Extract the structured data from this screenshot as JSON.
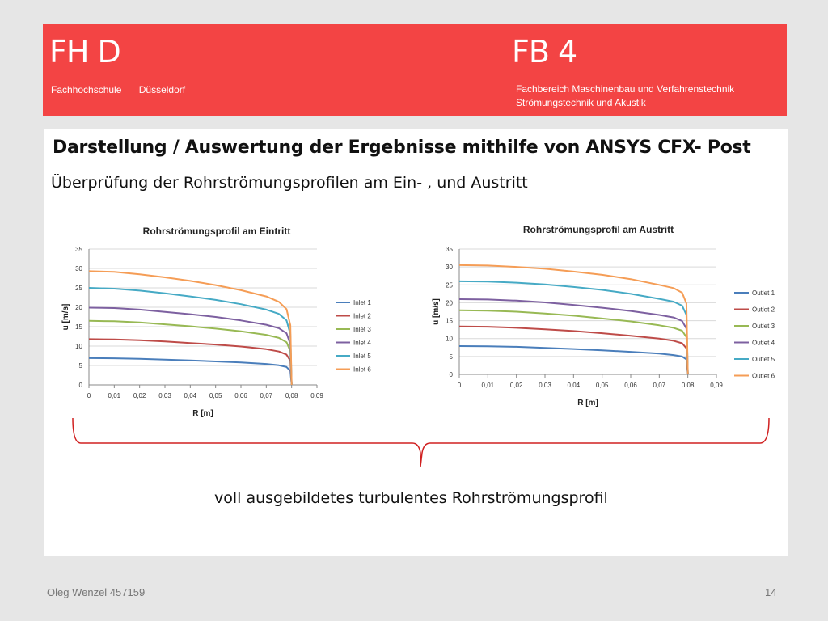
{
  "header": {
    "logo_left": "FH D",
    "logo_right": "FB 4",
    "sub_left_1": "Fachhochschule",
    "sub_left_2": "Düsseldorf",
    "sub_right_1": "Fachbereich Maschinenbau und Verfahrenstechnik",
    "sub_right_2": "Strömungstechnik und Akustik",
    "background_color": "#f34444"
  },
  "slide": {
    "heading": "Darstellung / Auswertung der Ergebnisse mithilfe von ANSYS CFX- Post",
    "subheading": "Überprüfung der Rohrströmungsprofilen am Ein- , und Austritt",
    "conclusion": "voll ausgebildetes turbulentes Rohrströmungsprofil"
  },
  "footer": {
    "author": "Oleg Wenzel 457159",
    "page": "14"
  },
  "chart_data": [
    {
      "type": "line",
      "title": "Rohrströmungsprofil  am Eintritt",
      "xlabel": "R [m]",
      "ylabel": "u [m/s]",
      "xlim": [
        0,
        0.09
      ],
      "ylim": [
        0,
        35
      ],
      "x_ticks": [
        "0",
        "0,01",
        "0,02",
        "0,03",
        "0,04",
        "0,05",
        "0,06",
        "0,07",
        "0,08",
        "0,09"
      ],
      "y_ticks": [
        "0",
        "5",
        "10",
        "15",
        "20",
        "25",
        "30",
        "35"
      ],
      "grid": true,
      "legend": "right",
      "x": [
        0,
        0.01,
        0.02,
        0.03,
        0.04,
        0.05,
        0.06,
        0.07,
        0.075,
        0.078,
        0.0795,
        0.08
      ],
      "series": [
        {
          "name": "Inlet 1",
          "color": "#4a7ebb",
          "values": [
            6.9,
            6.85,
            6.7,
            6.5,
            6.3,
            6.05,
            5.8,
            5.4,
            5.05,
            4.6,
            3.6,
            0
          ]
        },
        {
          "name": "Inlet 2",
          "color": "#be4b48",
          "values": [
            11.8,
            11.7,
            11.5,
            11.2,
            10.8,
            10.4,
            9.9,
            9.2,
            8.6,
            7.8,
            6.2,
            0
          ]
        },
        {
          "name": "Inlet 3",
          "color": "#98b954",
          "values": [
            16.5,
            16.4,
            16.1,
            15.6,
            15.1,
            14.5,
            13.8,
            12.9,
            12.1,
            11.0,
            8.7,
            0
          ]
        },
        {
          "name": "Inlet 4",
          "color": "#7d60a0",
          "values": [
            19.9,
            19.8,
            19.4,
            18.8,
            18.2,
            17.5,
            16.6,
            15.5,
            14.6,
            13.3,
            10.5,
            0
          ]
        },
        {
          "name": "Inlet 5",
          "color": "#46aac5",
          "values": [
            25.0,
            24.8,
            24.3,
            23.6,
            22.8,
            21.9,
            20.8,
            19.4,
            18.3,
            16.6,
            13.1,
            0
          ]
        },
        {
          "name": "Inlet 6",
          "color": "#f59d56",
          "values": [
            29.3,
            29.1,
            28.5,
            27.7,
            26.8,
            25.7,
            24.4,
            22.8,
            21.4,
            19.5,
            15.4,
            0
          ]
        }
      ]
    },
    {
      "type": "line",
      "title": "Rohrströmungsprofil am Austritt",
      "xlabel": "R [m]",
      "ylabel": "u [m/s]",
      "xlim": [
        0,
        0.09
      ],
      "ylim": [
        0,
        35
      ],
      "x_ticks": [
        "0",
        "0,01",
        "0,02",
        "0,03",
        "0,04",
        "0,05",
        "0,06",
        "0,07",
        "0,08",
        "0,09"
      ],
      "y_ticks": [
        "0",
        "5",
        "10",
        "15",
        "20",
        "25",
        "30",
        "35"
      ],
      "grid": true,
      "legend": "right",
      "x": [
        0,
        0.01,
        0.02,
        0.03,
        0.04,
        0.05,
        0.06,
        0.07,
        0.075,
        0.078,
        0.0795,
        0.08
      ],
      "series": [
        {
          "name": "Outlet 1",
          "color": "#4a7ebb",
          "values": [
            7.9,
            7.85,
            7.7,
            7.4,
            7.1,
            6.7,
            6.3,
            5.8,
            5.4,
            5.0,
            4.2,
            0
          ]
        },
        {
          "name": "Outlet 2",
          "color": "#be4b48",
          "values": [
            13.4,
            13.3,
            13.0,
            12.6,
            12.1,
            11.5,
            10.8,
            10.0,
            9.4,
            8.7,
            7.3,
            0
          ]
        },
        {
          "name": "Outlet 3",
          "color": "#98b954",
          "values": [
            17.9,
            17.8,
            17.5,
            17.0,
            16.4,
            15.6,
            14.8,
            13.7,
            13.0,
            12.2,
            10.4,
            0
          ]
        },
        {
          "name": "Outlet 4",
          "color": "#7d60a0",
          "values": [
            21.0,
            20.9,
            20.6,
            20.1,
            19.4,
            18.6,
            17.7,
            16.6,
            15.9,
            14.9,
            12.8,
            0
          ]
        },
        {
          "name": "Outlet 5",
          "color": "#46aac5",
          "values": [
            26.0,
            25.9,
            25.6,
            25.1,
            24.4,
            23.6,
            22.5,
            21.1,
            20.3,
            19.2,
            16.6,
            0
          ]
        },
        {
          "name": "Outlet 6",
          "color": "#f59d56",
          "values": [
            30.5,
            30.4,
            30.0,
            29.5,
            28.7,
            27.8,
            26.6,
            25.0,
            24.1,
            22.8,
            19.8,
            0
          ]
        }
      ]
    }
  ]
}
